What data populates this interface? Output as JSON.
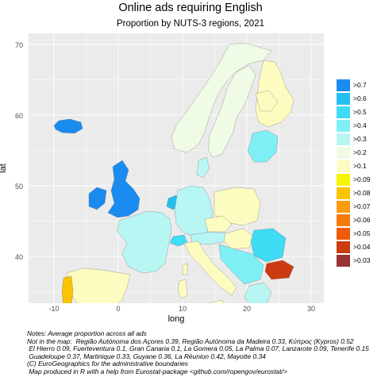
{
  "title": "Online ads requiring English",
  "subtitle": "Proportion by NUTS-3 regions, 2021",
  "axes": {
    "xlabel": "long",
    "ylabel": "lat",
    "xticks": [
      "-10",
      "0",
      "10",
      "20",
      "30"
    ],
    "yticks": [
      "70",
      "60",
      "50",
      "40"
    ],
    "xlim": [
      -14,
      32
    ],
    "ylim": [
      33.5,
      72.5
    ]
  },
  "legend": {
    "placement": "right",
    "items": [
      {
        "label": ">0.7",
        "color": "#1a8cf0"
      },
      {
        "label": ">0.6",
        "color": "#27bff0"
      },
      {
        "label": ">0.5",
        "color": "#3fdcf5"
      },
      {
        "label": ">0.4",
        "color": "#7ef0f5"
      },
      {
        "label": ">0.3",
        "color": "#b8f6f4"
      },
      {
        "label": ">0.2",
        "color": "#f0fbe6"
      },
      {
        "label": ">0.1",
        "color": "#fdfcc0"
      },
      {
        "label": ">0.09",
        "color": "#f7f402"
      },
      {
        "label": ">0.08",
        "color": "#fbc400"
      },
      {
        "label": ">0.07",
        "color": "#fa9a0c"
      },
      {
        "label": ">0.06",
        "color": "#f77a0c"
      },
      {
        "label": ">0.05",
        "color": "#f05a06"
      },
      {
        "label": ">0.04",
        "color": "#cc3a10"
      },
      {
        "label": ">0.03",
        "color": "#993333"
      }
    ]
  },
  "notes": [
    "Notes: Average proportion across all ads",
    "Not in the map:  Região Autónoma dos Açores 0.39, Região Autónoma da Madeira 0.33, Κύπρος (Kypros) 0.52",
    " El Hierro 0.09, Fuerteventura 0.1, Gran Canaria 0.1, La Gomera 0.05, La Palma 0.07, Lanzarote 0.09, Tenerife 0.15",
    " Guadeloupe 0.37, Martinique 0.33, Guyane 0.36, La Réunion 0.42, Mayotte 0.34",
    "(C) EuroGeographics for the administrative boundaries",
    " Map produced in R with a help from Eurostat-package <github.com/ropengov/eurostat/>"
  ],
  "map": {
    "grid": true,
    "regions": [
      {
        "name": "Ireland",
        "color": "#1a8cf0"
      },
      {
        "name": "United Kingdom",
        "color": "#1a8cf0"
      },
      {
        "name": "Iceland",
        "color": "#1a8cf0"
      },
      {
        "name": "Norway",
        "color": "#f0fbe6"
      },
      {
        "name": "Sweden",
        "color": "#f0fbe6"
      },
      {
        "name": "Finland",
        "color": "#fdfcc0"
      },
      {
        "name": "Denmark",
        "color": "#b8f6f4"
      },
      {
        "name": "Netherlands",
        "color": "#27bff0"
      },
      {
        "name": "Germany",
        "color": "#b8f6f4"
      },
      {
        "name": "France",
        "color": "#b8f6f4"
      },
      {
        "name": "Spain",
        "color": "#fdfcc0"
      },
      {
        "name": "Portugal",
        "color": "#fbc400"
      },
      {
        "name": "Italy",
        "color": "#fdfcc0"
      },
      {
        "name": "Poland",
        "color": "#fdfcc0"
      },
      {
        "name": "Baltics",
        "color": "#7ef0f5"
      },
      {
        "name": "Austria",
        "color": "#b8f6f4"
      },
      {
        "name": "Czechia",
        "color": "#fdfcc0"
      },
      {
        "name": "Hungary",
        "color": "#fdfcc0"
      },
      {
        "name": "Romania",
        "color": "#3fdcf5"
      },
      {
        "name": "Bulgaria",
        "color": "#cc3a10"
      },
      {
        "name": "Balkans",
        "color": "#7ef0f5"
      },
      {
        "name": "Greece",
        "color": "#b8f6f4"
      },
      {
        "name": "Switzerland",
        "color": "#3fdcf5"
      },
      {
        "name": "Sicily",
        "color": "#fdfcc0"
      },
      {
        "name": "Sardinia",
        "color": "#fdfcc0"
      },
      {
        "name": "Corsica",
        "color": "#fdfcc0"
      },
      {
        "name": "Crete",
        "color": "#b8f6f4"
      }
    ]
  }
}
